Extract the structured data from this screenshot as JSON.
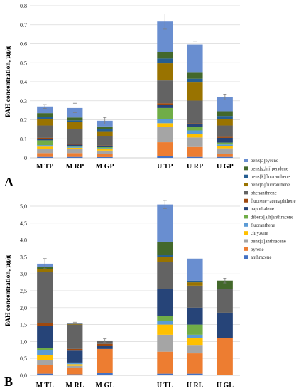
{
  "colors": {
    "anthracene": "#4472c4",
    "pyrene": "#ed7d31",
    "benz_a_anthracene": "#a5a5a5",
    "chrysene": "#ffc000",
    "fluoranthene": "#5b9bd5",
    "dibenz_ah_anthracene": "#70ad47",
    "naphthalene": "#264478",
    "fluorene_acenaphthene": "#9e480e",
    "phenanthrene": "#636363",
    "benz_b_fluoranthene": "#997300",
    "benz_k_fluoranthene": "#255e91",
    "benz_ghi_perylene": "#43682b",
    "benz_a_pyrene": "#698ed0",
    "error_bar": "#7f7f7f",
    "grid": "#d9d9d9",
    "axis": "#bfbfbf"
  },
  "chart_data": [
    {
      "panel_label": "A",
      "type": "bar",
      "stacked": true,
      "ylabel": "PAH concentration, µg/g",
      "ylim": [
        0,
        0.8
      ],
      "yticks": [
        "0",
        "0.1",
        "0.2",
        "0.3",
        "0.4",
        "0.5",
        "0.6",
        "0.7",
        "0.8"
      ],
      "ytick_values": [
        0,
        0.1,
        0.2,
        0.3,
        0.4,
        0.5,
        0.6,
        0.7,
        0.8
      ],
      "grid": true,
      "legend_position": "right",
      "categories": [
        "M TP",
        "M RP",
        "M GP",
        "",
        "U TP",
        "U RP",
        "U GP"
      ],
      "totals_error": [
        0.01,
        0.025,
        0.017,
        null,
        0.04,
        0.018,
        0.015
      ],
      "series": [
        {
          "name": "anthracene",
          "values": [
            0.005,
            0.005,
            0.004,
            null,
            0.01,
            0.005,
            0.005
          ]
        },
        {
          "name": "pyrene",
          "values": [
            0.02,
            0.02,
            0.016,
            null,
            0.072,
            0.052,
            0.015
          ]
        },
        {
          "name": "benz[a]anthracene",
          "values": [
            0.022,
            0.02,
            0.018,
            null,
            0.08,
            0.05,
            0.03
          ]
        },
        {
          "name": "chryzene",
          "values": [
            0.012,
            0.008,
            0.008,
            null,
            0.02,
            0.02,
            0.01
          ]
        },
        {
          "name": "fluoranthene",
          "values": [
            0.008,
            0.005,
            0.005,
            null,
            0.02,
            0.017,
            0.01
          ]
        },
        {
          "name": "dibenz[a,h]anthracene",
          "values": [
            0.025,
            0.005,
            0.005,
            null,
            0.06,
            0.02,
            0.01
          ]
        },
        {
          "name": "naphthalene",
          "values": [
            0.008,
            0.006,
            0.006,
            null,
            0.015,
            0.012,
            0.025
          ]
        },
        {
          "name": "fluorene+acenaphthene",
          "values": [
            0.005,
            0.003,
            0.003,
            null,
            0.01,
            0.005,
            0.005
          ]
        },
        {
          "name": "phenanthrene",
          "values": [
            0.065,
            0.08,
            0.05,
            null,
            0.12,
            0.12,
            0.06
          ]
        },
        {
          "name": "benz[b]fluoranthene",
          "values": [
            0.035,
            0.035,
            0.025,
            null,
            0.09,
            0.095,
            0.035
          ]
        },
        {
          "name": "benz[k]fluoranthene",
          "values": [
            0.01,
            0.01,
            0.01,
            null,
            0.025,
            0.02,
            0.015
          ]
        },
        {
          "name": "benz[g,h,i]perylene",
          "values": [
            0.02,
            0.015,
            0.015,
            null,
            0.035,
            0.035,
            0.025
          ]
        },
        {
          "name": "benz[a]pyrene",
          "values": [
            0.035,
            0.05,
            0.03,
            null,
            0.16,
            0.145,
            0.075
          ]
        }
      ]
    },
    {
      "panel_label": "B",
      "type": "bar",
      "stacked": true,
      "ylabel": "PAH concentration, µg/g",
      "ylim": [
        0,
        5.0
      ],
      "yticks": [
        "0,0",
        "0,5",
        "1,0",
        "1,5",
        "2,0",
        "2,5",
        "3,0",
        "3,5",
        "4,0",
        "4,5",
        "5,0"
      ],
      "ytick_values": [
        0,
        0.5,
        1,
        1.5,
        2,
        2.5,
        3,
        3.5,
        4,
        4.5,
        5
      ],
      "grid": true,
      "categories": [
        "M TL",
        "M RL",
        "M GL",
        "",
        "U TL",
        "U RL",
        "U GL"
      ],
      "totals_error": [
        0.15,
        0.02,
        0.05,
        null,
        0.12,
        null,
        0.07
      ],
      "series": [
        {
          "name": "anthracene",
          "values": [
            0.05,
            0.03,
            0.08,
            null,
            0.05,
            0.05,
            0.0
          ]
        },
        {
          "name": "pyrene",
          "values": [
            0.25,
            0.2,
            0.7,
            null,
            0.65,
            0.6,
            1.1
          ]
        },
        {
          "name": "benz[a]anthracene",
          "values": [
            0.15,
            0.05,
            0.0,
            null,
            0.5,
            0.25,
            0.0
          ]
        },
        {
          "name": "chryzene",
          "values": [
            0.15,
            0.05,
            0.0,
            null,
            0.3,
            0.2,
            0.0
          ]
        },
        {
          "name": "fluoranthene",
          "values": [
            0.15,
            0.03,
            0.0,
            null,
            0.1,
            0.1,
            0.0
          ]
        },
        {
          "name": "dibenz[a,h]anthracene",
          "values": [
            0.05,
            0.02,
            0.0,
            null,
            0.15,
            0.3,
            0.0
          ]
        },
        {
          "name": "naphthalene",
          "values": [
            0.65,
            0.35,
            0.1,
            null,
            0.8,
            0.5,
            0.75
          ]
        },
        {
          "name": "fluorene+acenaphthene",
          "values": [
            0.1,
            0.05,
            0.05,
            null,
            0.0,
            0.0,
            0.0
          ]
        },
        {
          "name": "phenanthrene",
          "values": [
            1.5,
            0.72,
            0.1,
            null,
            0.8,
            0.65,
            0.7
          ]
        },
        {
          "name": "benz[b]fluoranthene",
          "values": [
            0.1,
            0.02,
            0.0,
            null,
            0.15,
            0.1,
            0.0
          ]
        },
        {
          "name": "benz[k]fluoranthene",
          "values": [
            0.0,
            0.0,
            0.0,
            null,
            0.05,
            0.05,
            0.0
          ]
        },
        {
          "name": "benz[g,h,i]perylene",
          "values": [
            0.05,
            0.0,
            0.0,
            null,
            0.4,
            0.0,
            0.25
          ]
        },
        {
          "name": "benz[a]pyrene",
          "values": [
            0.1,
            0.03,
            0.0,
            null,
            1.1,
            0.65,
            0.0
          ]
        }
      ]
    }
  ],
  "legend": {
    "title": "",
    "entries": [
      "benz[a]pyrene",
      "benz[g,h,i]perylene",
      "benz[k]fluoranthene",
      "benz[b]fluoranthene",
      "phenanthrene",
      "fluorene+acenaphthene",
      "naphthalene",
      "dibenz[a,h]anthracene",
      "fluoranthene",
      "chryzene",
      "benz[a]anthracene",
      "pyrene",
      "anthracene"
    ]
  }
}
